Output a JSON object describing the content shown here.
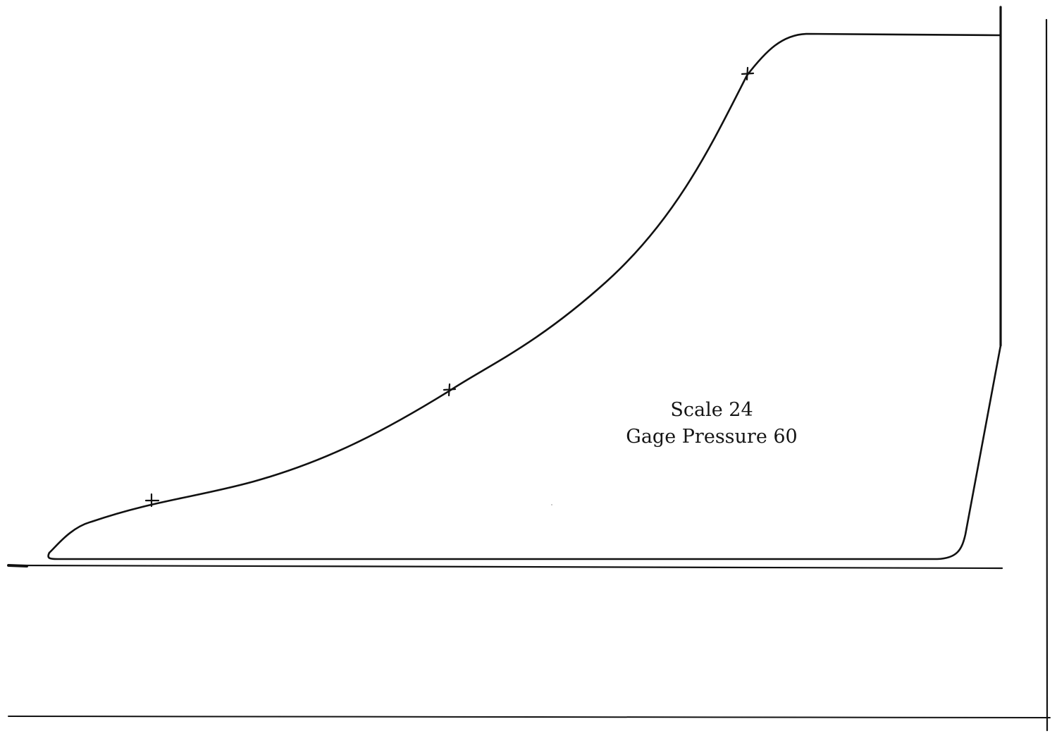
{
  "figure": {
    "type": "indicator-diagram",
    "label_lines": [
      "Scale 24",
      "Gage Pressure 60"
    ],
    "ink_color": "#111111",
    "background_color": "#ffffff",
    "marker_symbol": "cross",
    "marker_count": 3
  }
}
